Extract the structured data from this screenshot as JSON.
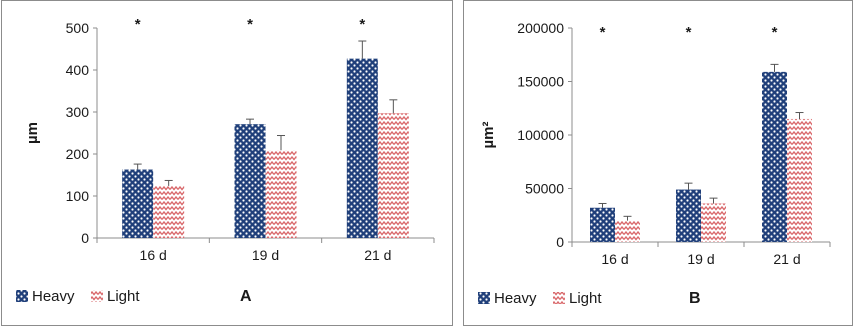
{
  "chart_data": [
    {
      "type": "bar",
      "panel_letter": "A",
      "categories": [
        "16 d",
        "19 d",
        "21 d"
      ],
      "ylabel": "µm",
      "ylim": [
        0,
        500
      ],
      "yticks": [
        "0",
        "100",
        "200",
        "300",
        "400",
        "500"
      ],
      "grid": false,
      "legend_position": "bottom-left",
      "series": [
        {
          "name": "Heavy",
          "values": [
            163,
            271,
            427
          ],
          "errors": [
            13,
            12,
            42
          ],
          "color": "#1f3f7a",
          "pattern": "checker"
        },
        {
          "name": "Light",
          "values": [
            124,
            209,
            297
          ],
          "errors": [
            13,
            35,
            32
          ],
          "color": "#d9676a",
          "pattern": "zigzag"
        }
      ],
      "annotations": [
        "*",
        "*",
        "*"
      ]
    },
    {
      "type": "bar",
      "panel_letter": "B",
      "categories": [
        "16 d",
        "19 d",
        "21 d"
      ],
      "ylabel": "µm²",
      "ylim": [
        0,
        200000
      ],
      "yticks": [
        "0",
        "50000",
        "100000",
        "150000",
        "200000"
      ],
      "grid": false,
      "legend_position": "bottom-left",
      "series": [
        {
          "name": "Heavy",
          "values": [
            32000,
            49000,
            159000
          ],
          "errors": [
            4000,
            6000,
            7000
          ],
          "color": "#1f3f7a",
          "pattern": "checker"
        },
        {
          "name": "Light",
          "values": [
            20000,
            36000,
            115000
          ],
          "errors": [
            4000,
            5000,
            6000
          ],
          "color": "#d9676a",
          "pattern": "zigzag"
        }
      ],
      "annotations": [
        "*",
        "*",
        "*"
      ]
    }
  ]
}
